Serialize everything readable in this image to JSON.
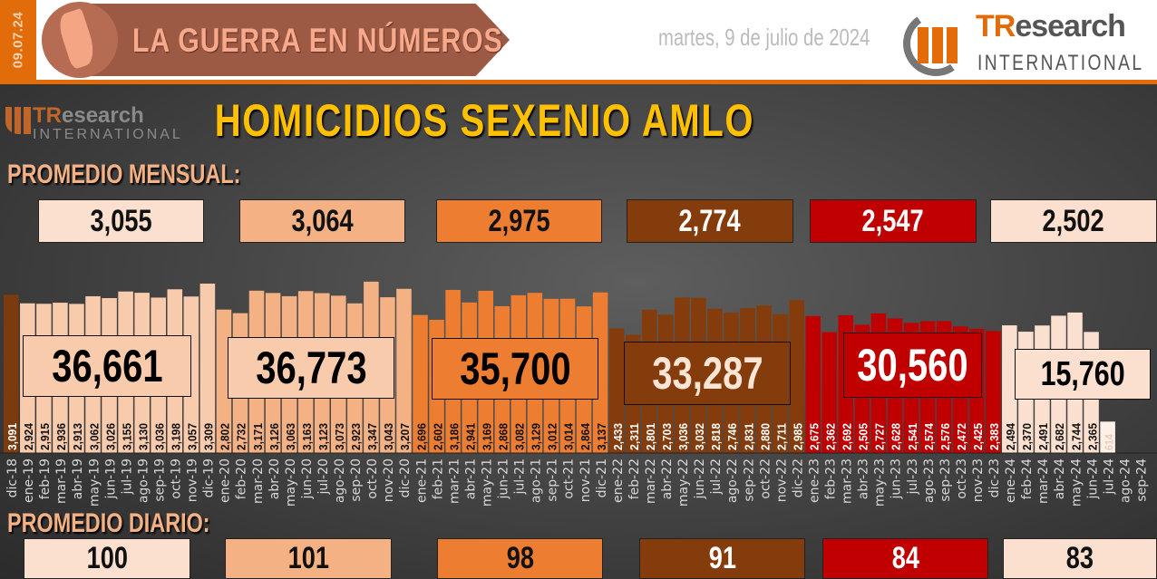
{
  "header": {
    "date_code": "09.07.24",
    "title": "LA GUERRA EN NÚMEROS",
    "date": "martes, 9 de julio de 2024",
    "logo_text_1": "TR",
    "logo_text_2": "esearch",
    "logo_text_3": "INTERNATIONAL"
  },
  "chart": {
    "title": "HOMICIDIOS SEXENIO AMLO",
    "monthly_label": "PROMEDIO MENSUAL:",
    "daily_label": "PROMEDIO DIARIO:",
    "monthly_averages": [
      "3,055",
      "3,064",
      "2,975",
      "2,774",
      "2,547",
      "2,502"
    ],
    "daily_averages": [
      "100",
      "101",
      "98",
      "91",
      "84",
      "83"
    ],
    "totals": [
      "36,661",
      "36,773",
      "35,700",
      "33,287",
      "30,560",
      "15,760"
    ]
  },
  "colors": {
    "2018": "#7b3b0f",
    "2019": "#f8cbad",
    "2020": "#f4b183",
    "2021": "#ed7d31",
    "2022": "#843c0c",
    "2023": "#c00000",
    "2024": "#fbe0cf",
    "partial": "#fdf0e7",
    "title": "#ffc000",
    "accent": "#e36c0a"
  },
  "chart_data": {
    "type": "bar",
    "title": "HOMICIDIOS SEXENIO AMLO",
    "xlabel": "",
    "ylabel": "",
    "categories": [
      "dic-18",
      "ene-19",
      "feb-19",
      "mar-19",
      "abr-19",
      "may-19",
      "jun-19",
      "jul-19",
      "ago-19",
      "sep-19",
      "oct-19",
      "nov-19",
      "dic-19",
      "ene-20",
      "feb-20",
      "mar-20",
      "abr-20",
      "may-20",
      "jun-20",
      "jul-20",
      "ago-20",
      "sep-20",
      "oct-20",
      "nov-20",
      "dic-20",
      "ene-21",
      "feb-21",
      "mar-21",
      "abr-21",
      "may-21",
      "jun-21",
      "jul-21",
      "ago-21",
      "sep-21",
      "oct-21",
      "nov-21",
      "dic-21",
      "ene-22",
      "feb-22",
      "mar-22",
      "abr-22",
      "may-22",
      "jun-22",
      "jul-22",
      "ago-22",
      "sep-22",
      "oct-22",
      "nov-22",
      "dic-22",
      "ene-23",
      "feb-23",
      "mar-23",
      "abr-23",
      "may-23",
      "jun-23",
      "jul-23",
      "ago-23",
      "sep-23",
      "oct-23",
      "nov-23",
      "dic-23",
      "ene-24",
      "feb-24",
      "mar-24",
      "abr-24",
      "may-24",
      "jun-24",
      "jul-24",
      "ago-24",
      "sep-24"
    ],
    "values": [
      3091,
      2924,
      2915,
      2936,
      2913,
      3062,
      3026,
      3155,
      3130,
      3036,
      3198,
      3057,
      3309,
      2802,
      2732,
      3171,
      3126,
      3063,
      3163,
      3123,
      3073,
      2923,
      3347,
      3043,
      3207,
      2696,
      2602,
      3186,
      2941,
      3169,
      2868,
      3082,
      3129,
      3012,
      3014,
      2864,
      3137,
      2433,
      2311,
      2801,
      2703,
      3036,
      3032,
      2818,
      2746,
      2831,
      2880,
      2711,
      2985,
      2675,
      2362,
      2692,
      2505,
      2727,
      2628,
      2541,
      2574,
      2576,
      2472,
      2425,
      2383,
      2494,
      2370,
      2491,
      2682,
      2744,
      2365,
      614,
      null,
      null
    ],
    "ylim": [
      0,
      3400
    ],
    "grid": false
  }
}
